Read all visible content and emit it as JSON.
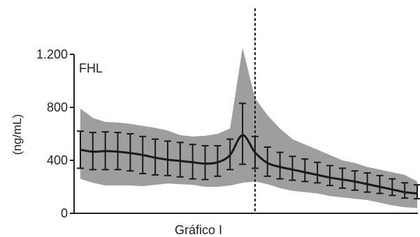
{
  "chart_data": {
    "type": "line",
    "title": "",
    "series_label": "FHL",
    "xlabel": "Gráfico I",
    "ylabel": "(ng/mL)",
    "ylim": [
      0,
      1200
    ],
    "yticks": [
      0,
      400,
      800,
      1200
    ],
    "ytick_labels": [
      "0",
      "400",
      "800",
      "1.200"
    ],
    "x": [
      1,
      2,
      3,
      4,
      5,
      6,
      7,
      8,
      9,
      10,
      11,
      12,
      13,
      14,
      15,
      16,
      17,
      18,
      19,
      20,
      21,
      22,
      23,
      24,
      25,
      26,
      27,
      28
    ],
    "marker_x": 15,
    "series": [
      {
        "mean": [
          480,
          465,
          470,
          465,
          455,
          440,
          420,
          405,
          395,
          385,
          375,
          385,
          440,
          590,
          460,
          380,
          350,
          330,
          310,
          290,
          270,
          255,
          240,
          220,
          200,
          180,
          160,
          150
        ],
        "lower": [
          340,
          330,
          330,
          330,
          320,
          300,
          290,
          285,
          275,
          260,
          255,
          280,
          330,
          370,
          340,
          280,
          260,
          250,
          240,
          230,
          210,
          190,
          175,
          160,
          150,
          135,
          115,
          110
        ],
        "upper": [
          620,
          610,
          615,
          610,
          600,
          580,
          560,
          545,
          535,
          520,
          510,
          510,
          560,
          830,
          580,
          500,
          460,
          430,
          410,
          385,
          360,
          340,
          320,
          305,
          285,
          260,
          230,
          215
        ]
      }
    ],
    "band": {
      "upper": [
        790,
        720,
        690,
        685,
        675,
        660,
        645,
        625,
        590,
        580,
        585,
        600,
        640,
        1250,
        870,
        740,
        640,
        560,
        520,
        480,
        440,
        400,
        380,
        350,
        330,
        310,
        290,
        240
      ],
      "lower": [
        260,
        230,
        210,
        210,
        210,
        205,
        215,
        225,
        220,
        215,
        200,
        200,
        210,
        230,
        240,
        220,
        190,
        170,
        160,
        150,
        130,
        120,
        110,
        100,
        80,
        60,
        45,
        40
      ]
    },
    "colors": {
      "band": "#9e9e9e",
      "line": "#1a1a1a",
      "marker": "#1a1a1a"
    }
  }
}
